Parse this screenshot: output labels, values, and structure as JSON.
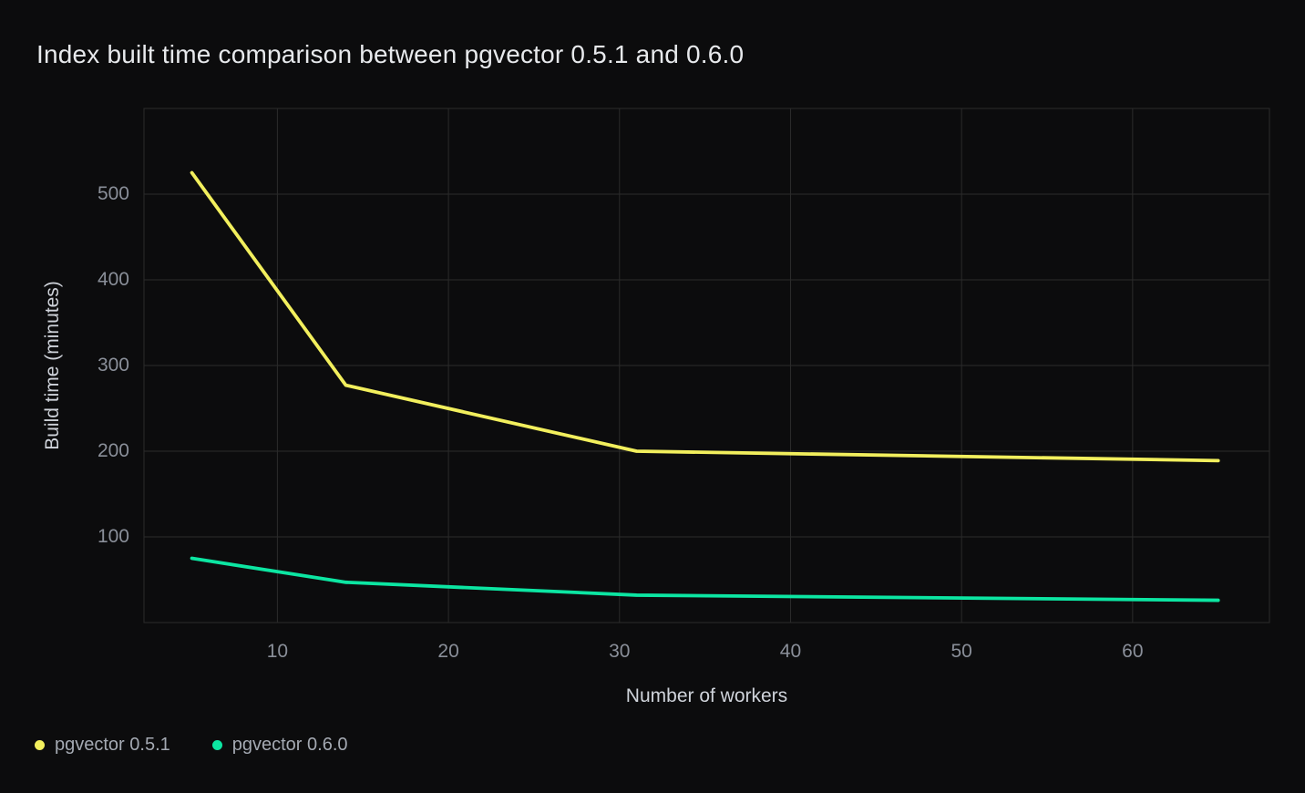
{
  "title": "Index built time comparison between pgvector 0.5.1 and 0.6.0",
  "chart_data": {
    "type": "line",
    "x": [
      5,
      14,
      31,
      65
    ],
    "series": [
      {
        "name": "pgvector 0.5.1",
        "color": "#f2ef5d",
        "values": [
          525,
          277,
          200,
          189
        ]
      },
      {
        "name": "pgvector 0.6.0",
        "color": "#0ce6a2",
        "values": [
          75,
          47,
          32,
          26
        ]
      }
    ],
    "title": "Index built time comparison between pgvector 0.5.1 and 0.6.0",
    "xlabel": "Number of workers",
    "ylabel": "Build time (minutes)",
    "x_ticks": [
      10,
      20,
      30,
      40,
      50,
      60
    ],
    "y_ticks": [
      100,
      200,
      300,
      400,
      500
    ],
    "xlim": [
      2.2,
      68
    ],
    "ylim": [
      0,
      600
    ],
    "grid": true,
    "legend_position": "bottom-left",
    "colors": {
      "background": "#0c0c0d",
      "grid": "#2b2b2b",
      "tick_label": "#8a8f99",
      "axis_title": "#cfd3da",
      "title": "#e7e9ec",
      "legend_label": "#a4a9b2"
    }
  }
}
